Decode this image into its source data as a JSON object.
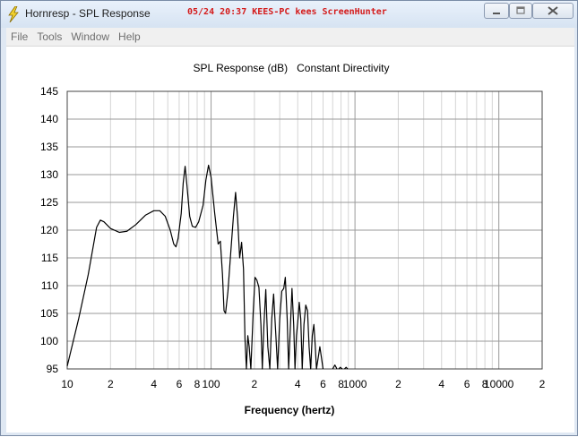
{
  "window": {
    "title": "Hornresp - SPL Response",
    "watermark": "05/24 20:37 KEES-PC kees ScreenHunter",
    "accent_color": "#d41a1a",
    "app_icon": "lightning-bolt-icon"
  },
  "menu": {
    "items": [
      "File",
      "Tools",
      "Window",
      "Help"
    ]
  },
  "chart_data": {
    "type": "line",
    "title": "SPL Response (dB)   Constant Directivity",
    "xlabel": "Frequency (hertz)",
    "ylabel": "",
    "x_scale": "log",
    "xlim": [
      10,
      20000
    ],
    "ylim": [
      95,
      145
    ],
    "grid": true,
    "y_ticks": [
      145,
      140,
      135,
      130,
      125,
      120,
      115,
      110,
      105,
      100,
      95
    ],
    "x_ticks": [
      {
        "value": 10,
        "label": "10"
      },
      {
        "value": 20,
        "label": "2"
      },
      {
        "value": 40,
        "label": "4"
      },
      {
        "value": 60,
        "label": "6"
      },
      {
        "value": 80,
        "label": "8"
      },
      {
        "value": 100,
        "label": "100"
      },
      {
        "value": 200,
        "label": "2"
      },
      {
        "value": 400,
        "label": "4"
      },
      {
        "value": 600,
        "label": "6"
      },
      {
        "value": 800,
        "label": "8"
      },
      {
        "value": 1000,
        "label": "1000"
      },
      {
        "value": 2000,
        "label": "2"
      },
      {
        "value": 4000,
        "label": "4"
      },
      {
        "value": 6000,
        "label": "6"
      },
      {
        "value": 8000,
        "label": "8"
      },
      {
        "value": 10000,
        "label": "10000"
      },
      {
        "value": 20000,
        "label": "2"
      }
    ],
    "series": [
      {
        "color": "#000000",
        "points": [
          [
            10,
            95.5
          ],
          [
            12,
            104
          ],
          [
            14,
            112
          ],
          [
            16,
            120.5
          ],
          [
            17,
            121.8
          ],
          [
            18,
            121.5
          ],
          [
            20,
            120.3
          ],
          [
            23,
            119.6
          ],
          [
            26,
            119.8
          ],
          [
            30,
            121
          ],
          [
            35,
            122.7
          ],
          [
            40,
            123.5
          ],
          [
            44,
            123.5
          ],
          [
            48,
            122.5
          ],
          [
            52,
            120
          ],
          [
            55,
            117.5
          ],
          [
            57,
            117
          ],
          [
            59,
            118.5
          ],
          [
            62,
            123
          ],
          [
            64,
            128.5
          ],
          [
            66,
            131.5
          ],
          [
            68,
            128
          ],
          [
            71,
            122.5
          ],
          [
            74,
            120.7
          ],
          [
            78,
            120.5
          ],
          [
            82,
            121.5
          ],
          [
            88,
            124.5
          ],
          [
            92,
            129
          ],
          [
            96,
            131.7
          ],
          [
            100,
            129.5
          ],
          [
            106,
            123
          ],
          [
            112,
            117.5
          ],
          [
            116,
            118
          ],
          [
            120,
            112
          ],
          [
            123,
            105.5
          ],
          [
            126,
            105
          ],
          [
            131,
            109
          ],
          [
            137,
            116
          ],
          [
            143,
            122.5
          ],
          [
            148,
            126.8
          ],
          [
            153,
            122
          ],
          [
            158,
            115
          ],
          [
            163,
            117.8
          ],
          [
            168,
            113
          ],
          [
            172,
            100.5
          ],
          [
            176,
            95
          ],
          [
            180,
            101
          ],
          [
            184,
            99
          ],
          [
            189,
            95
          ],
          [
            196,
            105
          ],
          [
            202,
            111.5
          ],
          [
            208,
            111
          ],
          [
            215,
            109.7
          ],
          [
            222,
            103
          ],
          [
            227,
            95
          ],
          [
            233,
            103
          ],
          [
            240,
            109.3
          ],
          [
            248,
            99
          ],
          [
            256,
            95
          ],
          [
            264,
            104
          ],
          [
            272,
            108.5
          ],
          [
            282,
            101
          ],
          [
            290,
            95
          ],
          [
            300,
            104
          ],
          [
            310,
            109
          ],
          [
            320,
            109.5
          ],
          [
            328,
            111.5
          ],
          [
            338,
            104
          ],
          [
            346,
            95
          ],
          [
            355,
            102
          ],
          [
            365,
            109.5
          ],
          [
            375,
            103
          ],
          [
            383,
            95
          ],
          [
            392,
            101
          ],
          [
            402,
            104
          ],
          [
            410,
            107
          ],
          [
            420,
            104
          ],
          [
            430,
            95
          ],
          [
            442,
            103
          ],
          [
            455,
            106.5
          ],
          [
            468,
            105.5
          ],
          [
            480,
            99
          ],
          [
            492,
            95
          ],
          [
            505,
            101
          ],
          [
            518,
            103
          ],
          [
            530,
            99
          ],
          [
            540,
            95
          ],
          [
            555,
            97
          ],
          [
            570,
            99
          ],
          [
            585,
            97
          ],
          [
            600,
            95
          ]
        ]
      },
      {
        "color": "#000000",
        "points": [
          [
            700,
            95
          ],
          [
            725,
            95.7
          ],
          [
            750,
            95
          ]
        ]
      },
      {
        "color": "#000000",
        "points": [
          [
            770,
            95
          ],
          [
            792,
            95.3
          ],
          [
            815,
            95
          ]
        ]
      },
      {
        "color": "#000000",
        "points": [
          [
            845,
            95
          ],
          [
            868,
            95.3
          ],
          [
            890,
            95
          ]
        ]
      }
    ]
  }
}
